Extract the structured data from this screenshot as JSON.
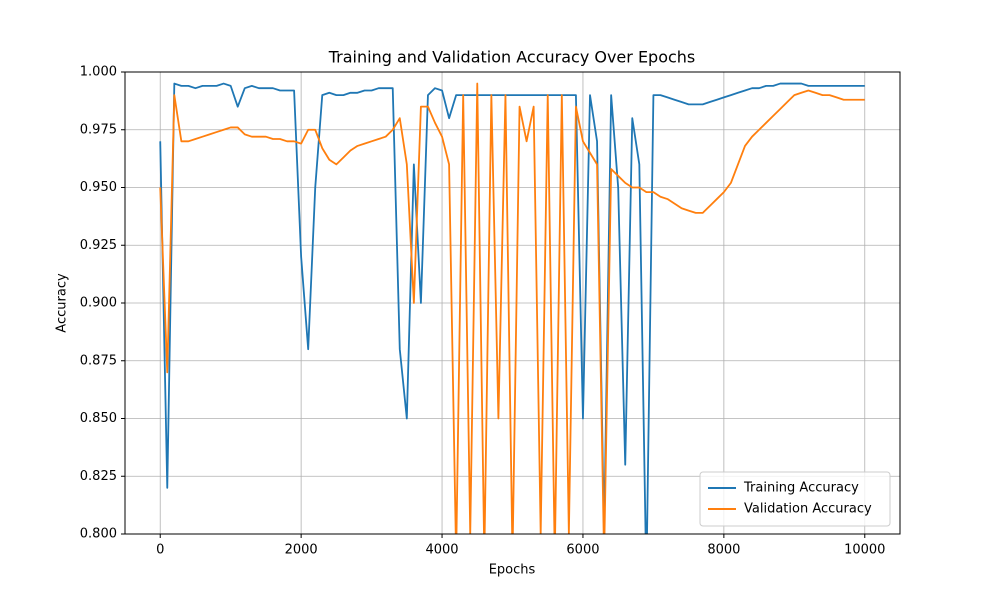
{
  "chart_data": {
    "type": "line",
    "title": "Training and Validation Accuracy Over Epochs",
    "x_label": "Epochs",
    "y_label": "Accuracy",
    "x": [
      0,
      100,
      200,
      300,
      400,
      500,
      600,
      700,
      800,
      900,
      1000,
      1100,
      1200,
      1300,
      1400,
      1500,
      1600,
      1700,
      1800,
      1900,
      2000,
      2100,
      2200,
      2300,
      2400,
      2500,
      2600,
      2700,
      2800,
      2900,
      3000,
      3100,
      3200,
      3300,
      3400,
      3500,
      3600,
      3700,
      3800,
      3900,
      4000,
      4100,
      4200,
      4300,
      4400,
      4500,
      4600,
      4700,
      4800,
      4900,
      5000,
      5100,
      5200,
      5300,
      5400,
      5500,
      5600,
      5700,
      5800,
      5900,
      6000,
      6100,
      6200,
      6300,
      6400,
      6500,
      6600,
      6700,
      6800,
      6900,
      7000,
      7100,
      7200,
      7300,
      7400,
      7500,
      7600,
      7700,
      7800,
      7900,
      8000,
      8100,
      8200,
      8300,
      8400,
      8500,
      8600,
      8700,
      8800,
      8900,
      9000,
      9100,
      9200,
      9300,
      9400,
      9500,
      9600,
      9700,
      9800,
      9900,
      10000
    ],
    "series": [
      {
        "name": "Training Accuracy",
        "color": "#1f77b4",
        "values": [
          0.97,
          0.82,
          0.995,
          0.994,
          0.994,
          0.993,
          0.994,
          0.994,
          0.994,
          0.995,
          0.994,
          0.985,
          0.993,
          0.994,
          0.993,
          0.993,
          0.993,
          0.992,
          0.992,
          0.992,
          0.92,
          0.88,
          0.95,
          0.99,
          0.991,
          0.99,
          0.99,
          0.991,
          0.991,
          0.992,
          0.992,
          0.993,
          0.993,
          0.993,
          0.88,
          0.85,
          0.96,
          0.9,
          0.99,
          0.993,
          0.992,
          0.98,
          0.99,
          0.99,
          0.99,
          0.99,
          0.99,
          0.99,
          0.99,
          0.99,
          0.99,
          0.99,
          0.99,
          0.99,
          0.99,
          0.99,
          0.99,
          0.99,
          0.99,
          0.99,
          0.85,
          0.99,
          0.97,
          0.8,
          0.99,
          0.95,
          0.83,
          0.98,
          0.96,
          0.78,
          0.99,
          0.99,
          0.989,
          0.988,
          0.987,
          0.986,
          0.986,
          0.986,
          0.987,
          0.988,
          0.989,
          0.99,
          0.991,
          0.992,
          0.993,
          0.993,
          0.994,
          0.994,
          0.995,
          0.995,
          0.995,
          0.995,
          0.994,
          0.994,
          0.994,
          0.994,
          0.994,
          0.994,
          0.994,
          0.994,
          0.994
        ]
      },
      {
        "name": "Validation Accuracy",
        "color": "#ff7f0e",
        "values": [
          0.95,
          0.87,
          0.99,
          0.97,
          0.97,
          0.971,
          0.972,
          0.973,
          0.974,
          0.975,
          0.976,
          0.976,
          0.973,
          0.972,
          0.972,
          0.972,
          0.971,
          0.971,
          0.97,
          0.97,
          0.969,
          0.975,
          0.975,
          0.967,
          0.962,
          0.96,
          0.963,
          0.966,
          0.968,
          0.969,
          0.97,
          0.971,
          0.972,
          0.975,
          0.98,
          0.96,
          0.9,
          0.985,
          0.985,
          0.978,
          0.972,
          0.96,
          0.79,
          0.99,
          0.8,
          0.995,
          0.79,
          0.99,
          0.85,
          0.99,
          0.79,
          0.985,
          0.97,
          0.985,
          0.8,
          0.99,
          0.79,
          0.99,
          0.8,
          0.985,
          0.97,
          0.965,
          0.96,
          0.79,
          0.958,
          0.955,
          0.952,
          0.95,
          0.95,
          0.948,
          0.948,
          0.946,
          0.945,
          0.943,
          0.941,
          0.94,
          0.939,
          0.939,
          0.942,
          0.945,
          0.948,
          0.952,
          0.96,
          0.968,
          0.972,
          0.975,
          0.978,
          0.981,
          0.984,
          0.987,
          0.99,
          0.991,
          0.992,
          0.991,
          0.99,
          0.99,
          0.989,
          0.988,
          0.988,
          0.988,
          0.988
        ]
      }
    ],
    "xlim": [
      -500,
      10500
    ],
    "ylim": [
      0.8,
      1.0
    ],
    "xticks": [
      0,
      2000,
      4000,
      6000,
      8000,
      10000
    ],
    "yticks": [
      {
        "value": 0.8,
        "label": "0.800"
      },
      {
        "value": 0.825,
        "label": "0.825"
      },
      {
        "value": 0.85,
        "label": "0.850"
      },
      {
        "value": 0.875,
        "label": "0.875"
      },
      {
        "value": 0.9,
        "label": "0.900"
      },
      {
        "value": 0.925,
        "label": "0.925"
      },
      {
        "value": 0.95,
        "label": "0.950"
      },
      {
        "value": 0.975,
        "label": "0.975"
      },
      {
        "value": 1.0,
        "label": "1.000"
      }
    ],
    "grid": true,
    "legend": "lower right"
  }
}
